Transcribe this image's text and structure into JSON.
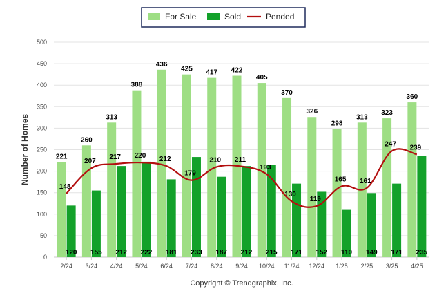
{
  "chart_data": {
    "type": "bar",
    "categories": [
      "2/24",
      "3/24",
      "4/24",
      "5/24",
      "6/24",
      "7/24",
      "8/24",
      "9/24",
      "10/24",
      "11/24",
      "12/24",
      "1/25",
      "2/25",
      "3/25",
      "4/25"
    ],
    "series": [
      {
        "name": "For Sale",
        "type": "bar",
        "color": "#9ede84",
        "values": [
          221,
          260,
          313,
          388,
          436,
          425,
          417,
          422,
          405,
          370,
          326,
          298,
          313,
          323,
          360
        ]
      },
      {
        "name": "Sold",
        "type": "bar",
        "color": "#13a12a",
        "values": [
          120,
          155,
          212,
          222,
          181,
          233,
          187,
          212,
          215,
          171,
          152,
          110,
          149,
          171,
          235
        ]
      },
      {
        "name": "Pended",
        "type": "line",
        "color": "#b30f0f",
        "values": [
          148,
          207,
          217,
          220,
          212,
          179,
          210,
          211,
          193,
          130,
          119,
          165,
          161,
          247,
          239
        ]
      }
    ],
    "ylabel": "Number of Homes",
    "ylim": [
      0,
      500
    ],
    "yticks": [
      0,
      50,
      100,
      150,
      200,
      250,
      300,
      350,
      400,
      450,
      500
    ],
    "grid": true,
    "legend": "top-center",
    "credit": "Copyright © Trendgraphix, Inc."
  }
}
